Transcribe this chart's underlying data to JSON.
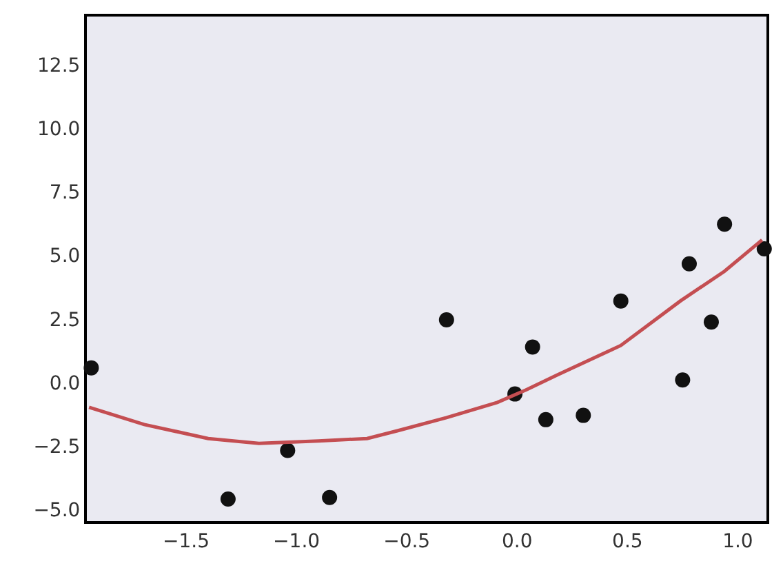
{
  "chart_data": {
    "type": "scatter",
    "xlim": [
      -1.95,
      1.13
    ],
    "ylim": [
      -5.45,
      14.4
    ],
    "xticks": [
      {
        "value": -1.5,
        "label": "−1.5"
      },
      {
        "value": -1.0,
        "label": "−1.0"
      },
      {
        "value": -0.5,
        "label": "−0.5"
      },
      {
        "value": 0,
        "label": "0.0"
      },
      {
        "value": 0.5,
        "label": "0.5"
      },
      {
        "value": 1.0,
        "label": "1.0"
      }
    ],
    "yticks": [
      {
        "value": -5,
        "label": "−5.0"
      },
      {
        "value": -2.5,
        "label": "−2.5"
      },
      {
        "value": 0,
        "label": "0.0"
      },
      {
        "value": 2.5,
        "label": "2.5"
      },
      {
        "value": 5,
        "label": "5.0"
      },
      {
        "value": 7.5,
        "label": "7.5"
      },
      {
        "value": 10,
        "label": "10.0"
      },
      {
        "value": 12.5,
        "label": "12.5"
      }
    ],
    "grid": false,
    "legend": false,
    "series": [
      {
        "marker": "circle",
        "color": "#111111",
        "x": [
          -1.93,
          -1.31,
          -1.04,
          -0.85,
          -0.32,
          -0.01,
          0.07,
          0.13,
          0.3,
          0.47,
          0.75,
          0.78,
          0.88,
          0.94,
          1.12
        ],
        "values": [
          0.58,
          -4.58,
          -2.67,
          -4.52,
          2.47,
          -0.45,
          1.4,
          -1.46,
          -1.29,
          3.21,
          0.1,
          4.67,
          2.38,
          6.23,
          5.26
        ]
      },
      {
        "type": "line",
        "color": "#c44e52",
        "line_style": "solid",
        "x": [
          -1.94,
          -1.69,
          -1.4,
          -1.17,
          -0.9,
          -0.68,
          -0.54,
          -0.32,
          -0.09,
          0.04,
          0.18,
          0.47,
          0.74,
          0.94,
          1.11
        ],
        "values": [
          -0.97,
          -1.65,
          -2.2,
          -2.39,
          -2.3,
          -2.2,
          -1.89,
          -1.38,
          -0.78,
          -0.29,
          0.29,
          1.46,
          3.21,
          4.38,
          5.61
        ]
      }
    ]
  }
}
